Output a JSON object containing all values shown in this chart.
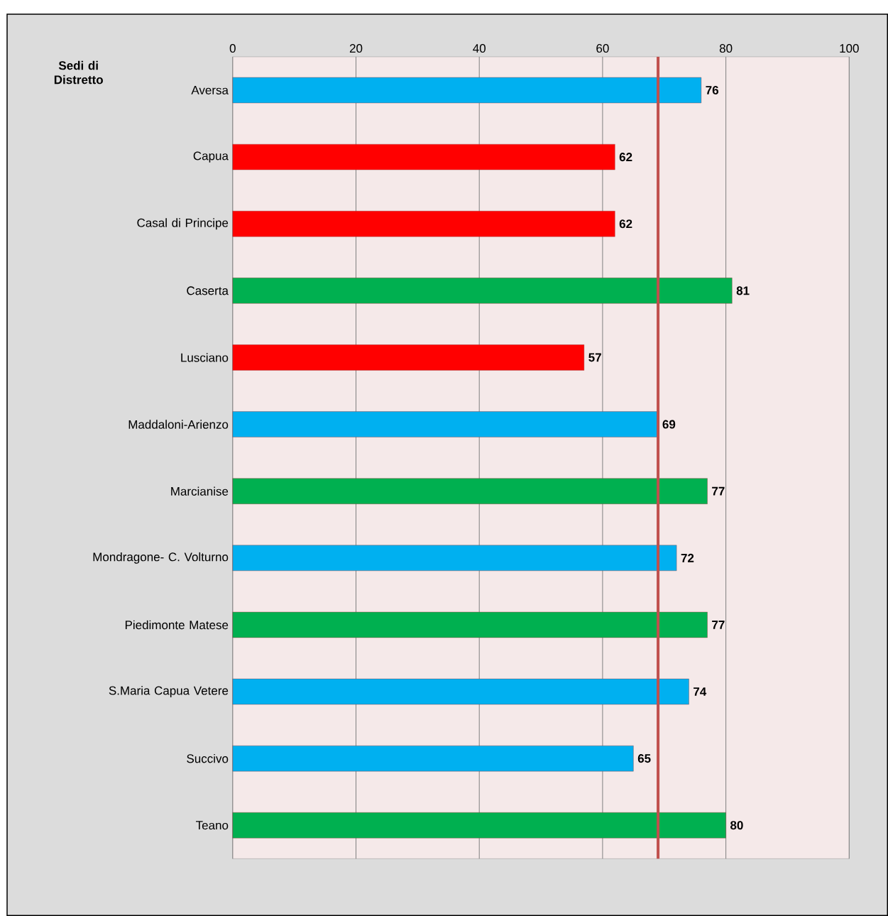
{
  "chart_data": {
    "type": "bar",
    "orientation": "horizontal",
    "ylabel": "Sedi di Distretto",
    "categories": [
      "Aversa",
      "Capua",
      "Casal di Principe",
      "Caserta",
      "Lusciano",
      "Maddaloni-Arienzo",
      "Marcianise",
      "Mondragone- C. Volturno",
      "Piedimonte Matese",
      "S.Maria Capua Vetere",
      "Succivo",
      "Teano"
    ],
    "values": [
      76,
      62,
      62,
      81,
      57,
      69,
      77,
      72,
      77,
      74,
      65,
      80
    ],
    "colors": [
      "#00b0f0",
      "#ff0000",
      "#ff0000",
      "#00b050",
      "#ff0000",
      "#00b0f0",
      "#00b050",
      "#00b0f0",
      "#00b050",
      "#00b0f0",
      "#00b0f0",
      "#00b050"
    ],
    "data_labels": true,
    "xlim": [
      0,
      100
    ],
    "xticks": [
      0,
      20,
      40,
      60,
      80,
      100
    ],
    "grid": "x",
    "ref_lines": [
      {
        "axis": "x",
        "value": 69,
        "color": "#c0504d"
      }
    ]
  }
}
